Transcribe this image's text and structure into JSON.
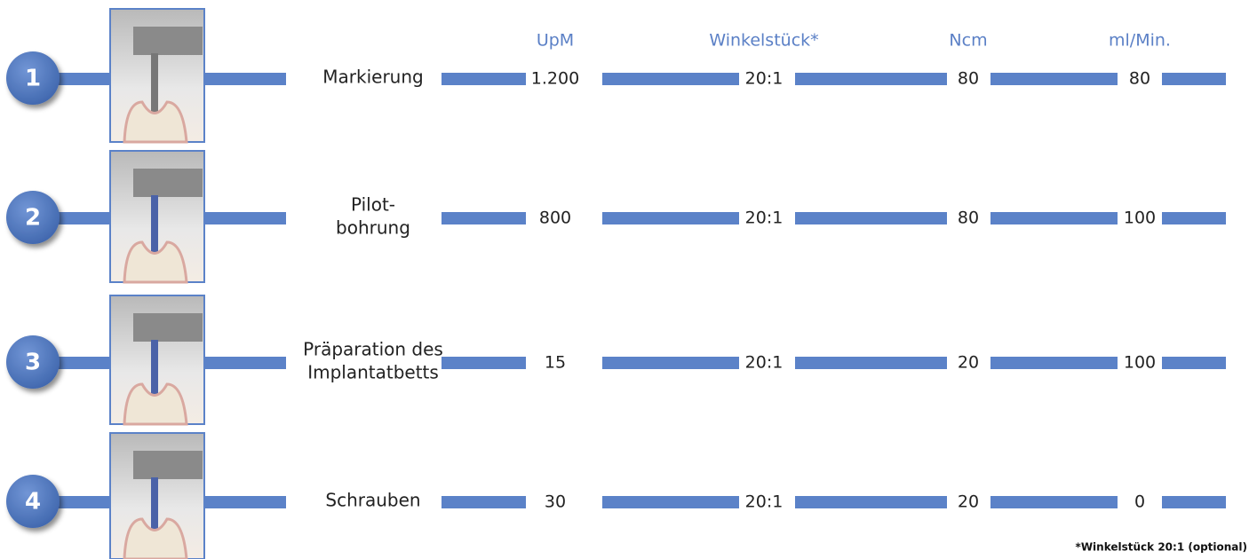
{
  "header": {
    "columns": [
      "UpM",
      "Winkelstück*",
      "Ncm",
      "ml/Min."
    ]
  },
  "rows": [
    {
      "number": "1",
      "label": [
        "Markierung"
      ],
      "values": [
        "1.200",
        "20:1",
        "80",
        "80"
      ]
    },
    {
      "number": "2",
      "label": [
        "Pilot-",
        "bohrung"
      ],
      "values": [
        "800",
        "20:1",
        "80",
        "100"
      ]
    },
    {
      "number": "3",
      "label": [
        "Präparation des",
        "Implantatbetts"
      ],
      "values": [
        "15",
        "20:1",
        "20",
        "100"
      ]
    },
    {
      "number": "4",
      "label": [
        "Schrauben"
      ],
      "values": [
        "30",
        "20:1",
        "20",
        "0"
      ]
    }
  ],
  "footnote": "*Winkelstück 20:1 (optional)"
}
